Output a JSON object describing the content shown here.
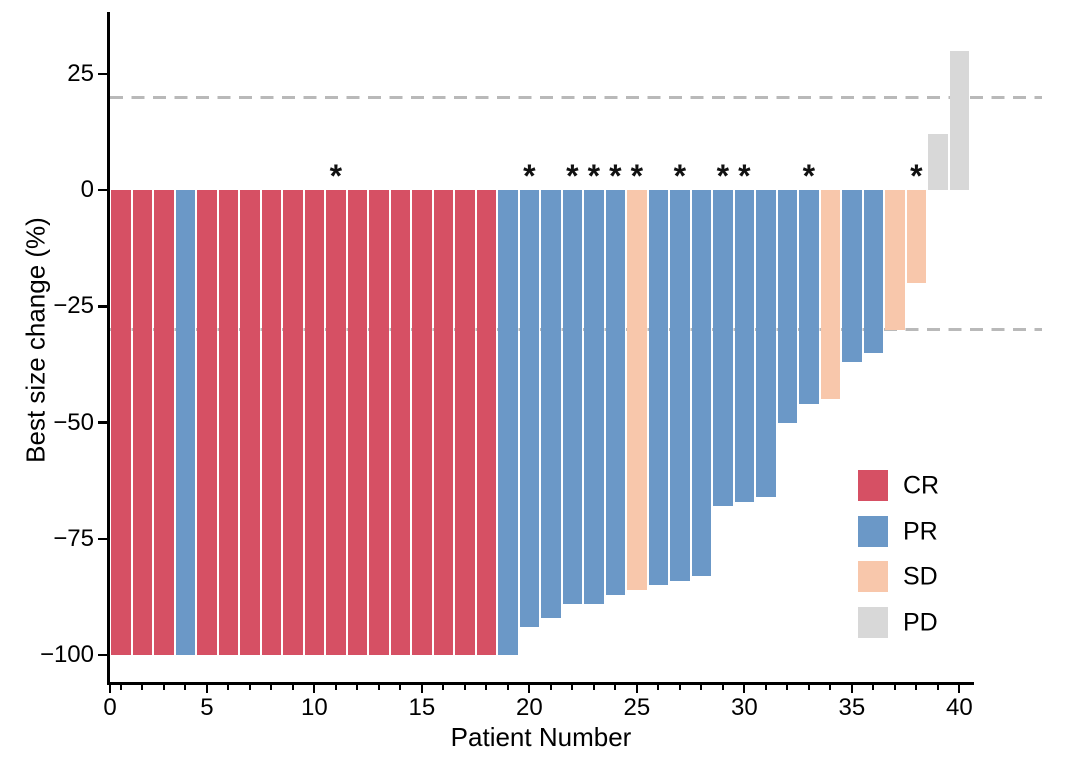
{
  "chart_data": {
    "type": "bar",
    "title": "",
    "xlabel": "Patient Number",
    "ylabel": "Best size change (%)",
    "xlim": [
      0,
      41
    ],
    "ylim": [
      -106,
      38
    ],
    "grid": false,
    "legend_position": "inside-right-bottom",
    "annotation_symbol": "*",
    "y_ticks": [
      {
        "value": 25,
        "label": "25"
      },
      {
        "value": 0,
        "label": "0"
      },
      {
        "value": -25,
        "label": "−25"
      },
      {
        "value": -50,
        "label": "−50"
      },
      {
        "value": -75,
        "label": "−75"
      },
      {
        "value": -100,
        "label": "−100"
      }
    ],
    "x_ticks": [
      {
        "value": 0,
        "label": "0"
      },
      {
        "value": 5,
        "label": "5"
      },
      {
        "value": 10,
        "label": "10"
      },
      {
        "value": 15,
        "label": "15"
      },
      {
        "value": 20,
        "label": "20"
      },
      {
        "value": 25,
        "label": "25"
      },
      {
        "value": 30,
        "label": "30"
      },
      {
        "value": 35,
        "label": "35"
      },
      {
        "value": 40,
        "label": "40"
      }
    ],
    "minor_x_tick_every": 1,
    "reference_lines": [
      {
        "y": 20,
        "style": "dashed",
        "color": "#b9b9b9"
      },
      {
        "y": -30,
        "style": "dashed",
        "color": "#b9b9b9"
      }
    ],
    "response_colors": {
      "CR": "#d65064",
      "PR": "#6b98c7",
      "SD": "#f8c7ab",
      "PD": "#d8d8d8"
    },
    "legend": {
      "entries": [
        {
          "label": "CR",
          "color": "#d65064"
        },
        {
          "label": "PR",
          "color": "#6b98c7"
        },
        {
          "label": "SD",
          "color": "#f8c7ab"
        },
        {
          "label": "PD",
          "color": "#d8d8d8"
        }
      ]
    },
    "patients": [
      {
        "number": 1,
        "value": -100,
        "response": "CR",
        "asterisk": false
      },
      {
        "number": 2,
        "value": -100,
        "response": "CR",
        "asterisk": false
      },
      {
        "number": 3,
        "value": -100,
        "response": "CR",
        "asterisk": false
      },
      {
        "number": 4,
        "value": -100,
        "response": "PR",
        "asterisk": false
      },
      {
        "number": 5,
        "value": -100,
        "response": "CR",
        "asterisk": false
      },
      {
        "number": 6,
        "value": -100,
        "response": "CR",
        "asterisk": false
      },
      {
        "number": 7,
        "value": -100,
        "response": "CR",
        "asterisk": false
      },
      {
        "number": 8,
        "value": -100,
        "response": "CR",
        "asterisk": false
      },
      {
        "number": 9,
        "value": -100,
        "response": "CR",
        "asterisk": false
      },
      {
        "number": 10,
        "value": -100,
        "response": "CR",
        "asterisk": false
      },
      {
        "number": 11,
        "value": -100,
        "response": "CR",
        "asterisk": true
      },
      {
        "number": 12,
        "value": -100,
        "response": "CR",
        "asterisk": false
      },
      {
        "number": 13,
        "value": -100,
        "response": "CR",
        "asterisk": false
      },
      {
        "number": 14,
        "value": -100,
        "response": "CR",
        "asterisk": false
      },
      {
        "number": 15,
        "value": -100,
        "response": "CR",
        "asterisk": false
      },
      {
        "number": 16,
        "value": -100,
        "response": "CR",
        "asterisk": false
      },
      {
        "number": 17,
        "value": -100,
        "response": "CR",
        "asterisk": false
      },
      {
        "number": 18,
        "value": -100,
        "response": "CR",
        "asterisk": false
      },
      {
        "number": 19,
        "value": -100,
        "response": "PR",
        "asterisk": false
      },
      {
        "number": 20,
        "value": -94,
        "response": "PR",
        "asterisk": true
      },
      {
        "number": 21,
        "value": -92,
        "response": "PR",
        "asterisk": false
      },
      {
        "number": 22,
        "value": -89,
        "response": "PR",
        "asterisk": true
      },
      {
        "number": 23,
        "value": -89,
        "response": "PR",
        "asterisk": true
      },
      {
        "number": 24,
        "value": -87,
        "response": "PR",
        "asterisk": true
      },
      {
        "number": 25,
        "value": -86,
        "response": "SD",
        "asterisk": true
      },
      {
        "number": 26,
        "value": -85,
        "response": "PR",
        "asterisk": false
      },
      {
        "number": 27,
        "value": -84,
        "response": "PR",
        "asterisk": true
      },
      {
        "number": 28,
        "value": -83,
        "response": "PR",
        "asterisk": false
      },
      {
        "number": 29,
        "value": -68,
        "response": "PR",
        "asterisk": true
      },
      {
        "number": 30,
        "value": -67,
        "response": "PR",
        "asterisk": true
      },
      {
        "number": 31,
        "value": -66,
        "response": "PR",
        "asterisk": false
      },
      {
        "number": 32,
        "value": -50,
        "response": "PR",
        "asterisk": false
      },
      {
        "number": 33,
        "value": -46,
        "response": "PR",
        "asterisk": true
      },
      {
        "number": 34,
        "value": -45,
        "response": "SD",
        "asterisk": false
      },
      {
        "number": 35,
        "value": -37,
        "response": "PR",
        "asterisk": false
      },
      {
        "number": 36,
        "value": -35,
        "response": "PR",
        "asterisk": false
      },
      {
        "number": 37,
        "value": -30,
        "response": "SD",
        "asterisk": false
      },
      {
        "number": 38,
        "value": -20,
        "response": "SD",
        "asterisk": true
      },
      {
        "number": 39,
        "value": 12,
        "response": "PD",
        "asterisk": false
      },
      {
        "number": 40,
        "value": 30,
        "response": "PD",
        "asterisk": false
      }
    ]
  }
}
